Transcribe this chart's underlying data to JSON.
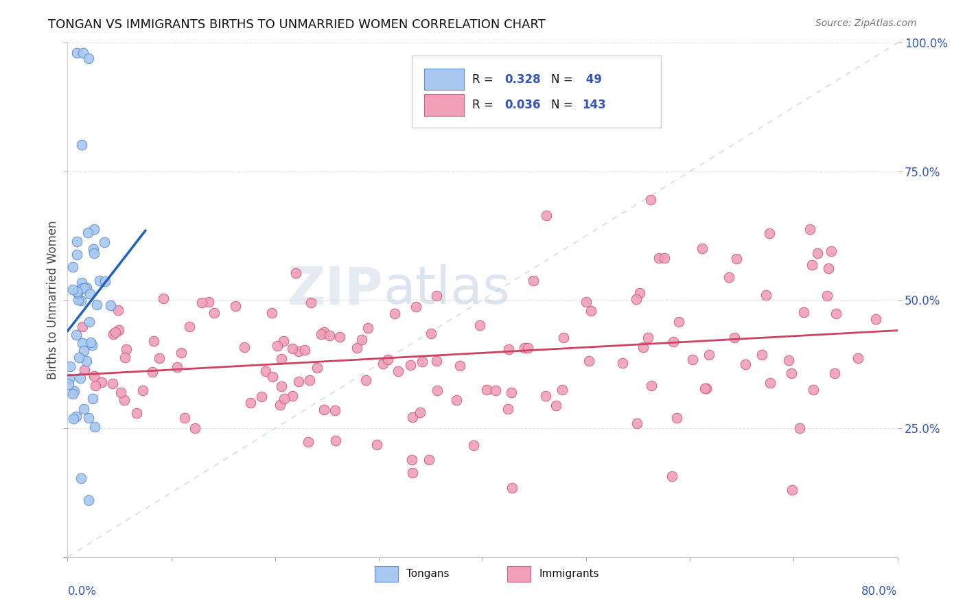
{
  "title": "TONGAN VS IMMIGRANTS BIRTHS TO UNMARRIED WOMEN CORRELATION CHART",
  "source": "Source: ZipAtlas.com",
  "ylabel": "Births to Unmarried Women",
  "tongan_color": "#a8c8f0",
  "tongan_edge_color": "#6090d0",
  "immigrant_color": "#f0a0b8",
  "immigrant_edge_color": "#d06080",
  "tongan_line_color": "#2060c0",
  "immigrant_line_color": "#d04060",
  "diag_line_color": "#b0c8e8",
  "watermark_zip": "ZIP",
  "watermark_atlas": "atlas",
  "xmin": 0.0,
  "xmax": 0.8,
  "ymin": 0.0,
  "ymax": 1.0,
  "grid_color": "#e0e0e8",
  "legend_R1": "R = ",
  "legend_V1": "0.328",
  "legend_N1": "N = ",
  "legend_NV1": " 49",
  "legend_R2": "R = ",
  "legend_V2": "0.036",
  "legend_N2": "N = ",
  "legend_NV2": "143"
}
